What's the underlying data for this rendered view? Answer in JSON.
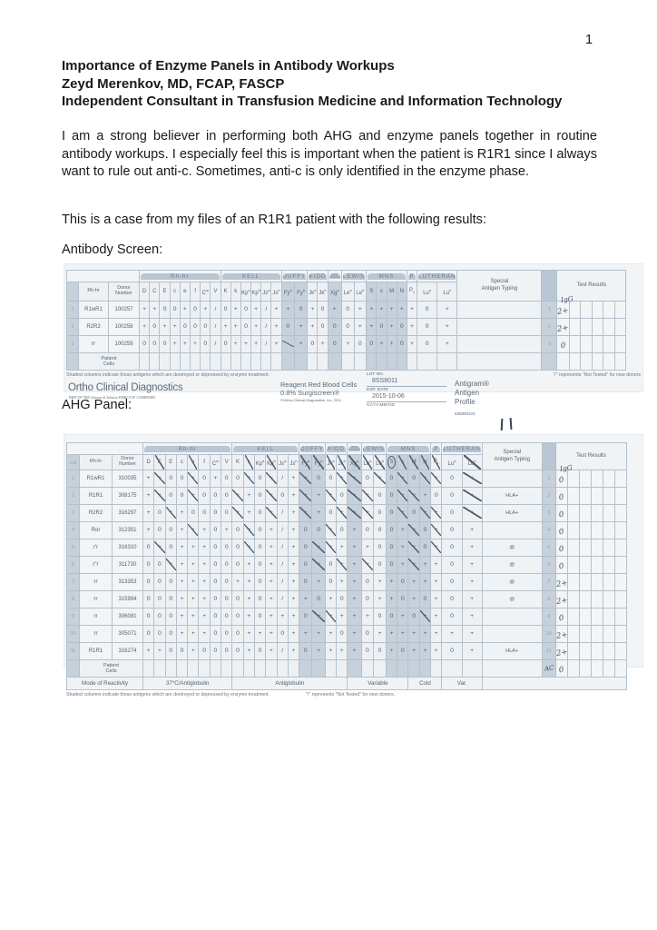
{
  "page_number": "1",
  "header": {
    "title": "Importance of Enzyme Panels in Antibody Workups",
    "author": "Zeyd Merenkov, MD, FCAP, FASCP",
    "affiliation": "Independent Consultant in Transfusion Medicine and Information Technology"
  },
  "body": {
    "paragraph1": "I am a strong believer in performing both AHG and enzyme panels together in routine antibody workups.  I especially feel this is important when the patient is R1R1 since I always want to rule out anti-c.  Sometimes, anti-c is only identified in the enzyme phase.",
    "paragraph2": "This is a case from my files of an R1R1 patient with the following results:",
    "screen_label": "Antibody Screen:",
    "ahg_label": "AHG Panel:"
  },
  "screen_panel": {
    "name": "antibody-screen-table",
    "groups": [
      {
        "label": "Rh-hr",
        "span": 8
      },
      {
        "label": "KELL",
        "span": 6
      },
      {
        "label": "DUFFY",
        "span": 2
      },
      {
        "label": "KIDD",
        "span": 2
      },
      {
        "label": "SEX LINKED",
        "span": 1
      },
      {
        "label": "LEWIS",
        "span": 2
      },
      {
        "label": "MNS",
        "span": 4
      },
      {
        "label": "P",
        "span": 1
      },
      {
        "label": "LUTHERAN",
        "span": 2
      }
    ],
    "columns": [
      "D",
      "C",
      "E",
      "c",
      "e",
      "f",
      "Cw",
      "V",
      "K",
      "k",
      "Kpa",
      "Kpb",
      "Jsa",
      "Jsb",
      "Fya",
      "Fyb",
      "Jka",
      "Jkb",
      "Xga",
      "Lea",
      "Leb",
      "S",
      "s",
      "M",
      "N",
      "P1",
      "Lua",
      "Lub"
    ],
    "shaded_columns": [
      "Fya",
      "Fyb",
      "Xga",
      "S",
      "s",
      "M",
      "N"
    ],
    "rh_header": "Rh-hr",
    "donor_header": "Donor Number",
    "special_header": "Special Antigen Typing",
    "results_header": "Test Results",
    "results_hw_header": "IgG",
    "rows": [
      {
        "num": "1",
        "rh": "R1wR1",
        "donor": "100257",
        "values": [
          "+",
          "+",
          "0",
          "0",
          "+",
          "0",
          "+",
          "/",
          "0",
          "+",
          "0",
          "+",
          "/",
          "+",
          "+",
          "0",
          "+",
          "0",
          "+",
          "0",
          "+",
          "+",
          "+",
          "+",
          "+",
          "+",
          "0",
          "+"
        ],
        "special": "",
        "result": "2+"
      },
      {
        "num": "2",
        "rh": "R2R2",
        "donor": "100258",
        "values": [
          "+",
          "0",
          "+",
          "+",
          "0",
          "0",
          "0",
          "/",
          "+",
          "+",
          "0",
          "+",
          "/",
          "+",
          "0",
          "+",
          "+",
          "0",
          "0",
          "0",
          "+",
          "+",
          "0",
          "+",
          "0",
          "+",
          "0",
          "+"
        ],
        "special": "",
        "result": "2+"
      },
      {
        "num": "3",
        "rh": "rr",
        "donor": "100259",
        "values": [
          "0",
          "0",
          "0",
          "+",
          "+",
          "+",
          "0",
          "/",
          "0",
          "+",
          "+",
          "+",
          "/",
          "+",
          "x",
          "+",
          "0",
          "+",
          "0",
          "+",
          "0",
          "0",
          "+",
          "+",
          "0",
          "+",
          "0",
          "+"
        ],
        "special": "",
        "result": "0"
      }
    ],
    "patient_row": {
      "label": "Patient Cells",
      "num_hw": "",
      "result": ""
    },
    "footnote_left": "Shaded columns indicate those antigens which are destroyed or depressed by enzyme treatment.",
    "footnote_right": "\"/\" represents \"Not Tested\" for new donors",
    "brand": {
      "name": "Ortho Clinical Diagnostics",
      "tagline": "PART OF THE Johnson & Johnson FAMILY OF COMPANIES",
      "product_line1": "Reagent Red Blood Cells",
      "product_line2": "0.8% Surgiscreen®",
      "copyright": "©Ortho-Clinical Diagnostics, Inc. 2011",
      "lot_label": "LOT NO.",
      "lot_value": "8SS8011",
      "exp_label": "EXP. DATE",
      "exp_value": "2015-10-06",
      "exp_format": "CCYY-MM-DD",
      "antigram_line1": "Antigram®",
      "antigram_line2": "Antigen",
      "antigram_line3": "Profile",
      "catalog": "635800103"
    }
  },
  "ahg_panel": {
    "name": "ahg-panel-table",
    "hw_top_marks": "| |",
    "groups": [
      {
        "label": "Rh-hr",
        "span": 8
      },
      {
        "label": "KELL",
        "span": 6
      },
      {
        "label": "DUFFY",
        "span": 2
      },
      {
        "label": "KIDD",
        "span": 2
      },
      {
        "label": "SEX LINKED",
        "span": 1
      },
      {
        "label": "LEWIS",
        "span": 2
      },
      {
        "label": "MNS",
        "span": 4
      },
      {
        "label": "P",
        "span": 1
      },
      {
        "label": "LUTHERAN",
        "span": 2
      }
    ],
    "columns": [
      "D",
      "C",
      "E",
      "c",
      "e",
      "f",
      "Cw",
      "V",
      "K",
      "k",
      "Kpa",
      "Kpb",
      "Jsa",
      "Jsb",
      "Fya",
      "Fyb",
      "Jka",
      "Jkb",
      "Xga",
      "Lea",
      "Leb",
      "S",
      "s",
      "M",
      "N",
      "P1",
      "Lua",
      "Lub"
    ],
    "shaded_columns": [
      "Fya",
      "Fyb",
      "Xga",
      "S",
      "s",
      "M",
      "N"
    ],
    "crossed_columns": [
      "C",
      "e",
      "k",
      "Kpb",
      "Fya",
      "Fyb",
      "Jka",
      "Jkb",
      "Xga",
      "Lea",
      "Leb",
      "s",
      "M",
      "N",
      "P1",
      "Lub"
    ],
    "circled_columns": [
      "S"
    ],
    "cell_header": "Cell",
    "rh_header": "Rh-hr",
    "donor_header": "Donor Number",
    "special_header": "Special Antigen Typing",
    "results_header": "Test Results",
    "results_hw_header": "IgG",
    "rows": [
      {
        "num": "1",
        "rh": "R1wR1",
        "donor": "310035",
        "values": [
          "+",
          "+x",
          "0",
          "0",
          "+x",
          "0",
          "+",
          "0",
          "0",
          "+x",
          "0",
          "+x",
          "/",
          "+",
          "+x",
          "0",
          "0",
          "+x",
          "+x",
          "0",
          "+x",
          "0",
          "+x",
          "0",
          "+x",
          "+x",
          "0",
          "+x"
        ],
        "special": "",
        "result": "0"
      },
      {
        "num": "2",
        "rh": "R1R1",
        "donor": "308175",
        "values": [
          "+",
          "+x",
          "0",
          "0",
          "+x",
          "0",
          "0",
          "0",
          "+x",
          "+",
          "0",
          "+x",
          "0",
          "+",
          "+x",
          "+",
          "+x",
          "0",
          "+x",
          "+x",
          "0",
          "0",
          "+x",
          "+x",
          "+",
          "0",
          "0",
          "+x"
        ],
        "special": "HLA+",
        "result": "0"
      },
      {
        "num": "3",
        "rh": "R2R2",
        "donor": "316297",
        "values": [
          "+",
          "0",
          "+x",
          "+",
          "0",
          "0",
          "0",
          "0",
          "+x",
          "+",
          "0",
          "+x",
          "/",
          "+",
          "+x",
          "+",
          "0",
          "+x",
          "+x",
          "+x",
          "0",
          "0",
          "+x",
          "0",
          "+x",
          "+x",
          "0",
          "+x"
        ],
        "special": "HLA+",
        "result": "0"
      },
      {
        "num": "4",
        "rh": "Ror",
        "donor": "312351",
        "values": [
          "+",
          "0",
          "0",
          "+",
          "+x",
          "+",
          "0",
          "+",
          "0",
          "+x",
          "0",
          "+",
          "/",
          "+",
          "0",
          "0",
          "+x",
          "0",
          "+",
          "0",
          "0",
          "0",
          "+",
          "+x",
          "0",
          "+x",
          "0",
          "+"
        ],
        "special": "",
        "result": "0"
      },
      {
        "num": "5",
        "rh": "r'r",
        "donor": "316310",
        "values": [
          "0",
          "+x",
          "0",
          "+",
          "+",
          "+",
          "0",
          "0",
          "0",
          "+x",
          "0",
          "+",
          "/",
          "+",
          "0",
          "+x",
          "+x",
          "+",
          "+",
          "+",
          "0",
          "0",
          "+",
          "+x",
          "0",
          "+x",
          "0",
          "+"
        ],
        "special": "@",
        "result": "0"
      },
      {
        "num": "6",
        "rh": "r\"r",
        "donor": "311730",
        "values": [
          "0",
          "0",
          "+x",
          "+",
          "+",
          "+",
          "0",
          "0",
          "0",
          "+",
          "0",
          "+",
          "/",
          "+",
          "0",
          "+x",
          "0",
          "+x",
          "+",
          "+x",
          "0",
          "0",
          "+",
          "+x",
          "+",
          "+",
          "0",
          "+"
        ],
        "special": "@",
        "result": "0"
      },
      {
        "num": "7",
        "rh": "rr",
        "donor": "313353",
        "values": [
          "0",
          "0",
          "0",
          "+",
          "+",
          "+",
          "0",
          "0",
          "+",
          "+",
          "0",
          "+",
          "/",
          "+",
          "0",
          "+",
          "0",
          "+",
          "+",
          "0",
          "+",
          "+",
          "0",
          "+",
          "+",
          "+",
          "0",
          "+"
        ],
        "special": "@",
        "result": "2+"
      },
      {
        "num": "8",
        "rh": "rr",
        "donor": "315994",
        "values": [
          "0",
          "0",
          "0",
          "+",
          "+",
          "+",
          "0",
          "0",
          "0",
          "+",
          "0",
          "+",
          "/",
          "+",
          "+",
          "0",
          "+",
          "0",
          "+",
          "0",
          "+",
          "+",
          "0",
          "+",
          "0",
          "+",
          "0",
          "+"
        ],
        "special": "@",
        "result": "2+"
      },
      {
        "num": "9",
        "rh": "rr",
        "donor": "306081",
        "values": [
          "0",
          "0",
          "0",
          "+",
          "+",
          "+",
          "0",
          "0",
          "0",
          "+",
          "0",
          "+",
          "+",
          "+",
          "0",
          "+x",
          "+x",
          "+",
          "+",
          "+",
          "0",
          "0",
          "+",
          "0",
          "+x",
          "+",
          "0",
          "+"
        ],
        "special": "",
        "result": "0"
      },
      {
        "num": "10",
        "rh": "rr",
        "donor": "305071",
        "values": [
          "0",
          "0",
          "0",
          "+",
          "+",
          "+",
          "0",
          "0",
          "0",
          "+",
          "+",
          "+",
          "0",
          "+",
          "+",
          "+",
          "+",
          "0",
          "+",
          "0",
          "+",
          "+",
          "+",
          "+",
          "+",
          "+",
          "+",
          "+"
        ],
        "special": "",
        "result": "2+"
      },
      {
        "num": "11",
        "rh": "R1R1",
        "donor": "316274",
        "values": [
          "+",
          "+",
          "0",
          "0",
          "+",
          "0",
          "0",
          "0",
          "0",
          "+",
          "0",
          "+",
          "/",
          "+",
          "0",
          "+",
          "+",
          "+",
          "+",
          "0",
          "0",
          "+",
          "0",
          "+",
          "+",
          "+",
          "0",
          "+"
        ],
        "special": "HLA+",
        "result": "2+"
      }
    ],
    "patient_row": {
      "label": "Patient Cells",
      "num_hw": "AC",
      "result": "0"
    },
    "mode_row": {
      "label": "Mode of Reactivity",
      "spans": [
        {
          "label": "37°C/Antiglobulin",
          "span": 8
        },
        {
          "label": "Antiglobulin",
          "span": 10
        },
        {
          "label": "Variable",
          "span": 5
        },
        {
          "label": "Cold",
          "span": 3
        },
        {
          "label": "Var.",
          "span": 2
        }
      ]
    },
    "footnote_left": "Shaded columns indicate those antigens which are destroyed or depressed by enzyme treatment.",
    "footnote_right": "\"/\" represents \"Not Tested\" for new donors."
  }
}
